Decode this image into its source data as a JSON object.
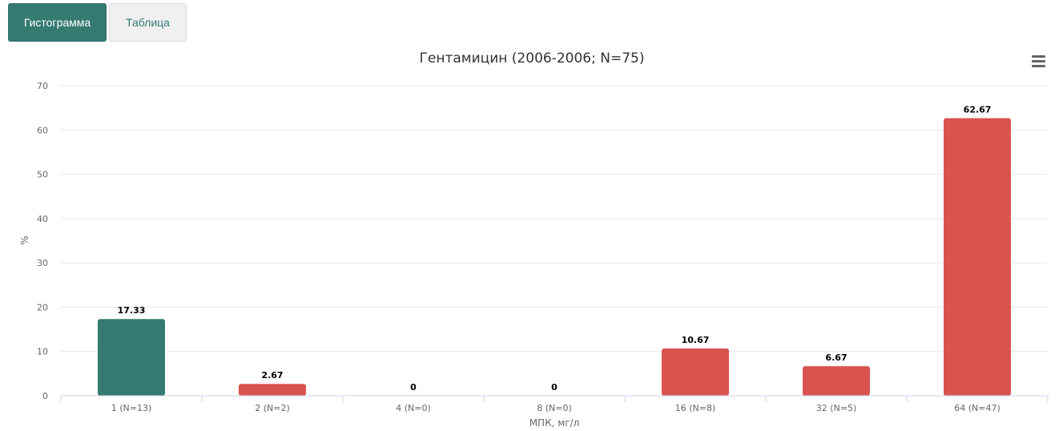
{
  "tabs": [
    {
      "label": "Гистограмма",
      "active": true
    },
    {
      "label": "Таблица",
      "active": false
    }
  ],
  "menu_icon": "hamburger-menu-icon",
  "colors": {
    "accent": "#357b72",
    "susceptible": "#357b72",
    "resistant": "#d9534f",
    "tab_inactive_bg": "#f0f0f0"
  },
  "chart_data": {
    "type": "bar",
    "title": "Гентамицин (2006-2006; N=75)",
    "xlabel": "МПК, мг/л",
    "ylabel": "%",
    "ylim": [
      0,
      70
    ],
    "yticks": [
      0,
      10,
      20,
      30,
      40,
      50,
      60,
      70
    ],
    "categories": [
      "1 (N=13)",
      "2 (N=2)",
      "4 (N=0)",
      "8 (N=0)",
      "16 (N=8)",
      "32 (N=5)",
      "64 (N=47)"
    ],
    "values": [
      17.33,
      2.67,
      0,
      0,
      10.67,
      6.67,
      62.67
    ],
    "data_labels": [
      "17.33",
      "2.67",
      "0",
      "0",
      "10.67",
      "6.67",
      "62.67"
    ],
    "bar_colors": [
      "#357b72",
      "#d9534f",
      "#d9534f",
      "#d9534f",
      "#d9534f",
      "#d9534f",
      "#d9534f"
    ],
    "grid": true,
    "legend": "none"
  }
}
